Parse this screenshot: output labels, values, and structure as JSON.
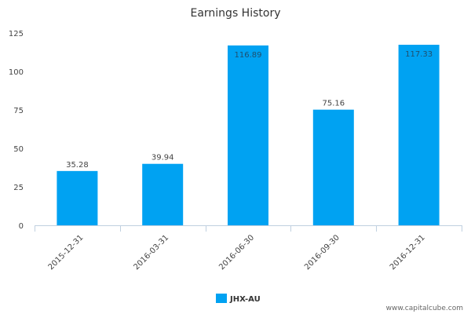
{
  "chart_data": {
    "type": "bar",
    "title": "Earnings History",
    "categories": [
      "2015-12-31",
      "2016-03-31",
      "2016-06-30",
      "2016-09-30",
      "2016-12-31"
    ],
    "series": [
      {
        "name": "JHX-AU",
        "values": [
          35.28,
          39.94,
          116.89,
          75.16,
          117.33
        ],
        "color": "#00a2f2"
      }
    ],
    "data_labels": [
      "35.28",
      "39.94",
      "116.89",
      "75.16",
      "117.33"
    ],
    "ylim": [
      0,
      125
    ],
    "yticks": [
      0,
      25,
      50,
      75,
      100,
      125
    ],
    "xlabel": "",
    "ylabel": "",
    "grid": false,
    "legend": {
      "position": "bottom-center"
    }
  },
  "credit": "www.capitalcube.com"
}
